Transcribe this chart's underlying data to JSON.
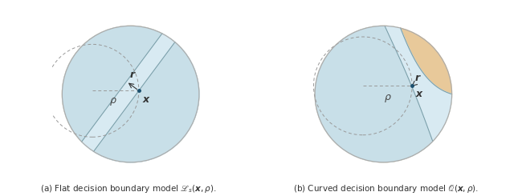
{
  "fig_width": 6.4,
  "fig_height": 2.45,
  "bg_color": "#ffffff",
  "orange_color": "#e8c99a",
  "light_blue": "#c8dfe8",
  "strip_blue": "#d8eaf2",
  "border_color": "#aaaaaa",
  "line_color": "#7a9faa",
  "dot_color": "#1a4f6e",
  "dashed_color": "#999999",
  "caption_left": "(a) Flat decision boundary model $\\mathscr{L}_s(\\boldsymbol{x}, \\rho)$.",
  "caption_right": "(b) Curved decision boundary model $\\mathscr{Q}(\\boldsymbol{x}, \\rho)$.",
  "label_r": "$\\boldsymbol{r}$",
  "label_x": "$\\boldsymbol{x}$",
  "label_rho": "$\\rho$"
}
